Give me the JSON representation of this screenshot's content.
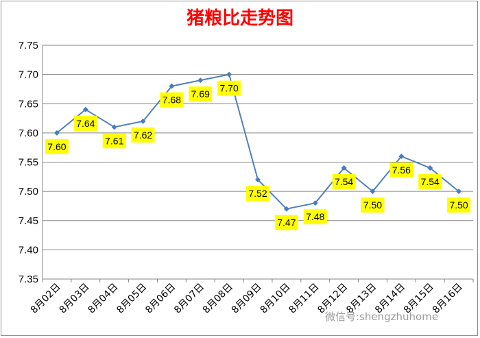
{
  "chart_data": {
    "type": "line",
    "title": "猪粮比走势图",
    "categories": [
      "8月02日",
      "8月03日",
      "8月04日",
      "8月05日",
      "8月06日",
      "8月07日",
      "8月08日",
      "8月09日",
      "8月10日",
      "8月11日",
      "8月12日",
      "8月13日",
      "8月14日",
      "8月15日",
      "8月16日"
    ],
    "series": [
      {
        "values": [
          7.6,
          7.64,
          7.61,
          7.62,
          7.68,
          7.69,
          7.7,
          7.52,
          7.47,
          7.48,
          7.54,
          7.5,
          7.56,
          7.54,
          7.5
        ]
      }
    ],
    "data_labels": [
      "7.60",
      "7.64",
      "7.61",
      "7.62",
      "7.68",
      "7.69",
      "7.70",
      "7.52",
      "7.47",
      "7.48",
      "7.54",
      "7.50",
      "7.56",
      "7.54",
      "7.50"
    ],
    "yticks": [
      "7.35",
      "7.40",
      "7.45",
      "7.50",
      "7.55",
      "7.60",
      "7.65",
      "7.70",
      "7.75"
    ],
    "ylim": [
      7.35,
      7.75
    ],
    "grid": true,
    "legend": "none",
    "colors": {
      "line": "#4f81bd",
      "marker": "#4a7ebb",
      "label_bg": "#ffff00",
      "title": "#ff0000",
      "grid": "#868686"
    }
  },
  "watermark": "微信号:shengzhuhome"
}
